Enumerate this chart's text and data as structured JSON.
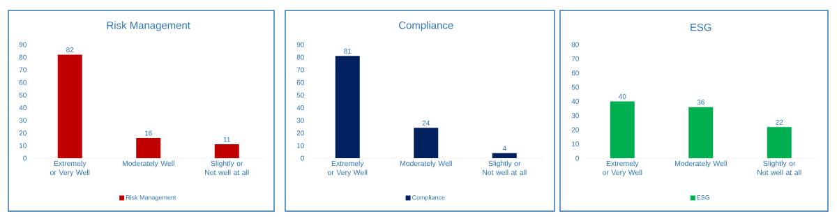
{
  "chart_data": [
    {
      "type": "bar",
      "title": "Risk Management",
      "categories": [
        "Extremely or Very Well",
        "Moderately Well",
        "Slightly or Not well at all"
      ],
      "series": [
        {
          "name": "Risk Management",
          "color": "#c00000",
          "values": [
            82,
            16,
            11
          ]
        }
      ],
      "ylim": [
        0,
        90
      ],
      "yticks": [
        0,
        10,
        20,
        30,
        40,
        50,
        60,
        70,
        80,
        90
      ],
      "data_labels": true,
      "legend": "bottom"
    },
    {
      "type": "bar",
      "title": "Compliance",
      "categories": [
        "Extremely or Very Well",
        "Moderately Well",
        "Slightly or Not well at all"
      ],
      "series": [
        {
          "name": "Compliance",
          "color": "#002060",
          "values": [
            81,
            24,
            4
          ]
        }
      ],
      "ylim": [
        0,
        90
      ],
      "yticks": [
        0,
        10,
        20,
        30,
        40,
        50,
        60,
        70,
        80,
        90
      ],
      "data_labels": true,
      "legend": "bottom"
    },
    {
      "type": "bar",
      "title": "ESG",
      "categories": [
        "Extremely or Very Well",
        "Moderately Well",
        "Slightly or Not well at all"
      ],
      "series": [
        {
          "name": "ESG",
          "color": "#00b050",
          "values": [
            40,
            36,
            22
          ]
        }
      ],
      "ylim": [
        0,
        80
      ],
      "yticks": [
        0,
        10,
        20,
        30,
        40,
        50,
        60,
        70,
        80
      ],
      "data_labels": true,
      "legend": "bottom"
    }
  ]
}
